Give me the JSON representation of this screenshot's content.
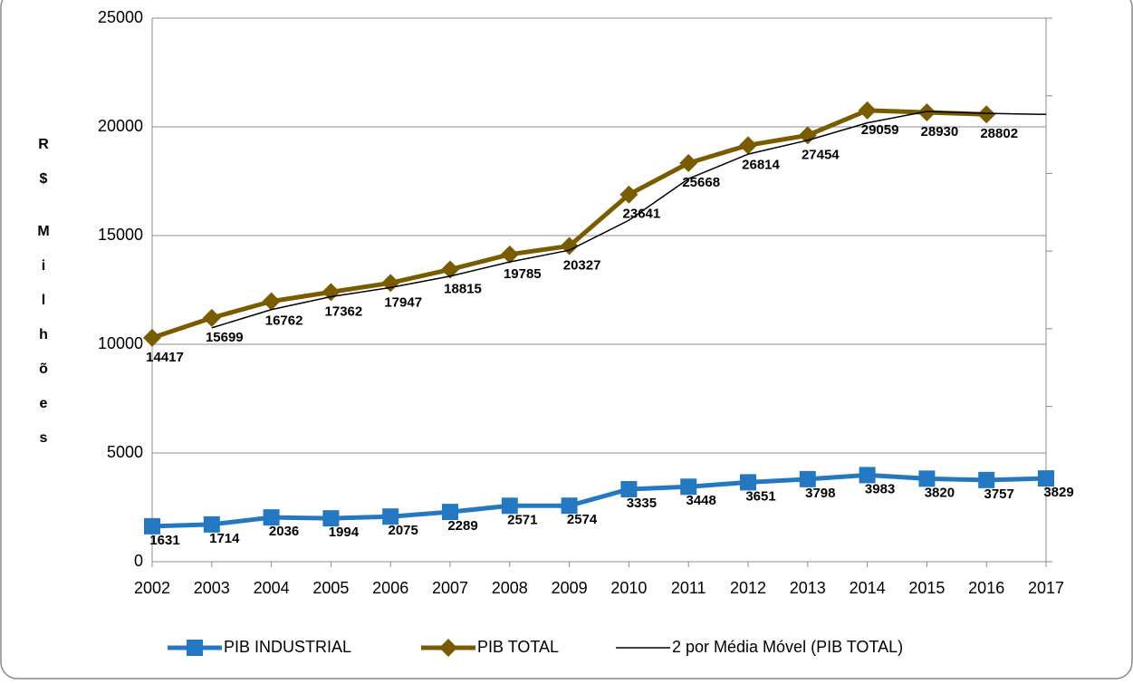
{
  "chart_data": {
    "type": "line",
    "y_label": "R$ Milhões",
    "x": [
      "2002",
      "2003",
      "2004",
      "2005",
      "2006",
      "2007",
      "2008",
      "2009",
      "2010",
      "2011",
      "2012",
      "2013",
      "2014",
      "2015",
      "2016",
      "2017"
    ],
    "ylim": [
      0,
      25000
    ],
    "yticks": [
      0,
      5000,
      10000,
      15000,
      20000,
      25000
    ],
    "y2lim": [
      0,
      35000
    ],
    "y2ticks": [
      0,
      5000,
      10000,
      15000,
      20000,
      25000,
      30000,
      35000
    ],
    "grid": true,
    "legend": "bottom",
    "series": [
      {
        "name": "PIB INDUSTRIAL",
        "color": "#2478c2",
        "marker": "square",
        "axis": "y",
        "data_labels": true,
        "values": [
          1631,
          1714,
          2036,
          1994,
          2075,
          2289,
          2571,
          2574,
          3335,
          3448,
          3651,
          3798,
          3983,
          3820,
          3757,
          3829
        ]
      },
      {
        "name": "PIB TOTAL",
        "color": "#7a5c00",
        "marker": "diamond",
        "axis": "y2",
        "data_labels": true,
        "values": [
          14417,
          15699,
          16762,
          17362,
          17947,
          18815,
          19785,
          20327,
          23641,
          25668,
          26814,
          27454,
          29059,
          28930,
          28802,
          null
        ]
      },
      {
        "name": "2 por Média Móvel (PIB TOTAL)",
        "color": "#000000",
        "marker": "none",
        "axis": "y2",
        "data_labels": false,
        "values": [
          null,
          15058,
          16230.5,
          17062,
          17654.5,
          18381,
          19300,
          20056,
          21984,
          24654.5,
          26241,
          27134,
          28256.5,
          28994.5,
          28866,
          28800
        ]
      }
    ]
  }
}
